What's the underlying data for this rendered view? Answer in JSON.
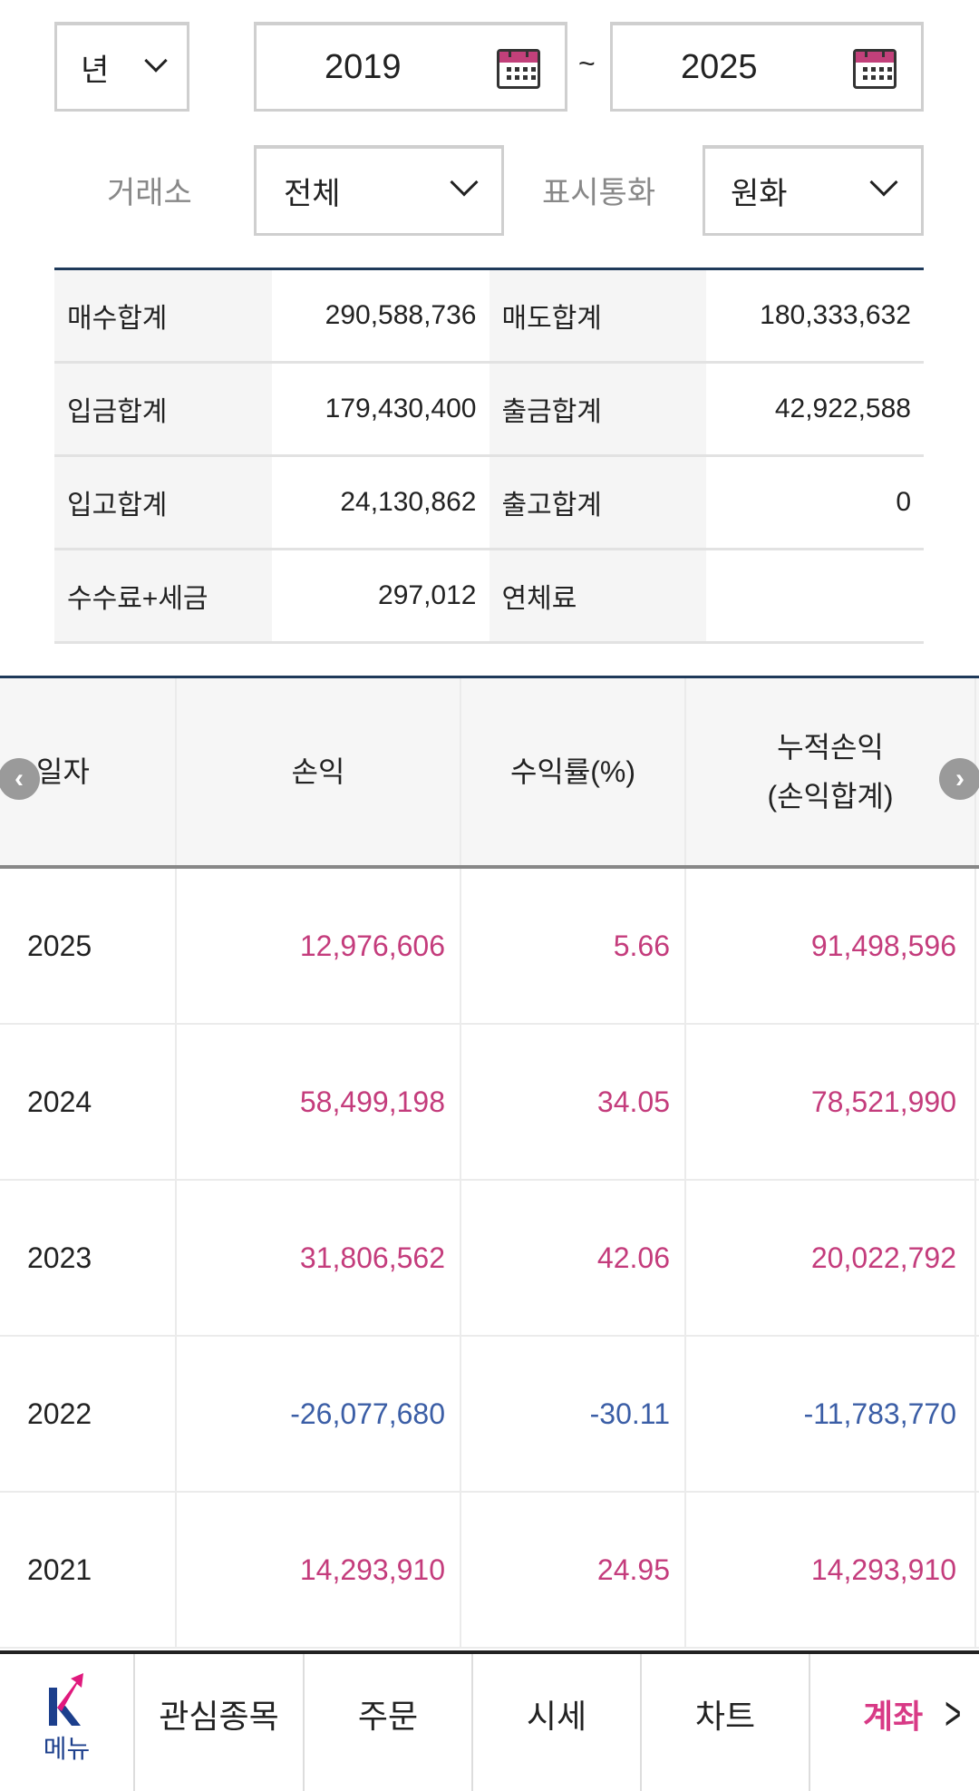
{
  "filters": {
    "period_unit": "년",
    "date_from": "2019",
    "date_separator": "~",
    "date_to": "2025",
    "exchange_label": "거래소",
    "exchange_value": "전체",
    "currency_label": "표시통화",
    "currency_value": "원화"
  },
  "summary": [
    {
      "label1": "매수합계",
      "value1": "290,588,736",
      "label2": "매도합계",
      "value2": "180,333,632"
    },
    {
      "label1": "입금합계",
      "value1": "179,430,400",
      "label2": "출금합계",
      "value2": "42,922,588"
    },
    {
      "label1": "입고합계",
      "value1": "24,130,862",
      "label2": "출고합계",
      "value2": "0"
    },
    {
      "label1": "수수료+세금",
      "value1": "297,012",
      "label2": "연체료",
      "value2": ""
    }
  ],
  "table": {
    "headers": {
      "date": "일자",
      "pnl": "손익",
      "rate": "수익률(%)",
      "cum_line1": "누적손익",
      "cum_line2": "(손익합계)"
    },
    "rows": [
      {
        "date": "2025",
        "pnl": "12,976,606",
        "rate": "5.66",
        "cum": "91,498,596",
        "sign": "pos"
      },
      {
        "date": "2024",
        "pnl": "58,499,198",
        "rate": "34.05",
        "cum": "78,521,990",
        "sign": "pos"
      },
      {
        "date": "2023",
        "pnl": "31,806,562",
        "rate": "42.06",
        "cum": "20,022,792",
        "sign": "pos"
      },
      {
        "date": "2022",
        "pnl": "-26,077,680",
        "rate": "-30.11",
        "cum": "-11,783,770",
        "sign": "neg"
      },
      {
        "date": "2021",
        "pnl": "14,293,910",
        "rate": "24.95",
        "cum": "14,293,910",
        "sign": "pos"
      }
    ]
  },
  "nav": {
    "menu": "메뉴",
    "items": [
      "관심종목",
      "주문",
      "시세",
      "차트",
      "계좌"
    ],
    "active": "계좌"
  },
  "colors": {
    "positive": "#c43c7c",
    "negative": "#3b5ea6",
    "accent": "#e0197d",
    "navy": "#1f3a5a"
  }
}
